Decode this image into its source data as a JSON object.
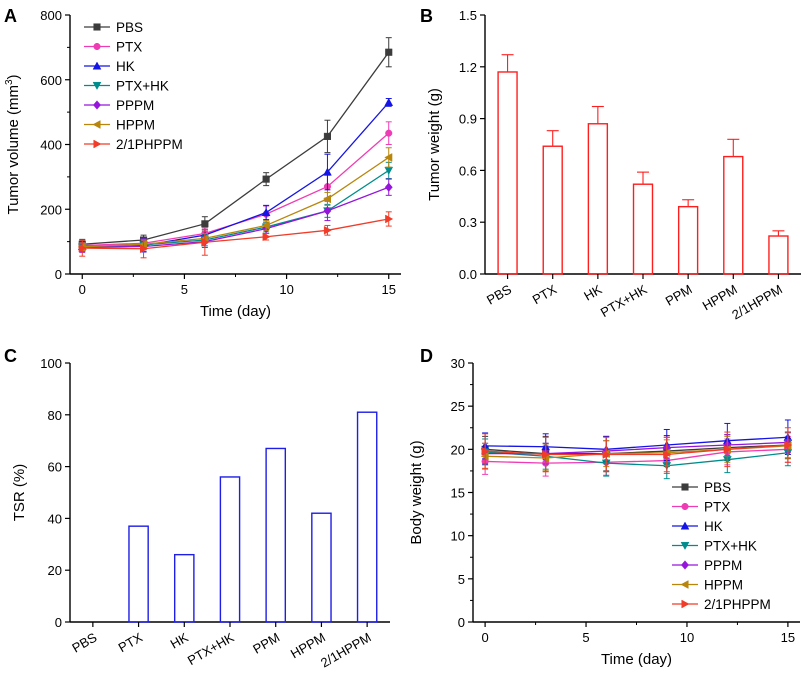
{
  "figure": {
    "panels": [
      "A",
      "B",
      "C",
      "D"
    ]
  },
  "chart_data": [
    {
      "panel": "A",
      "type": "line",
      "xlabel": "Time (day)",
      "ylabel_main": "Tumor volume (mm",
      "ylabel_sup": "3",
      "ylabel_close": ")",
      "xlim": [
        -0.6,
        15.6
      ],
      "ylim": [
        0,
        800
      ],
      "xticks": [
        0,
        5,
        10,
        15
      ],
      "yticks": [
        0,
        200,
        400,
        600,
        800
      ],
      "x": [
        0,
        3,
        6,
        9,
        12,
        15
      ],
      "legend": "top-left",
      "series": [
        {
          "name": "PBS",
          "color": "#3c3c3c",
          "marker": "square",
          "values": [
            92,
            105,
            155,
            293,
            425,
            685
          ],
          "errors": [
            15,
            15,
            22,
            20,
            50,
            45
          ]
        },
        {
          "name": "PTX",
          "color": "#f03cb4",
          "marker": "circle",
          "values": [
            88,
            95,
            125,
            185,
            270,
            435
          ],
          "errors": [
            12,
            14,
            18,
            25,
            35,
            35
          ]
        },
        {
          "name": "HK",
          "color": "#1414e6",
          "marker": "triangle-up",
          "values": [
            85,
            88,
            120,
            190,
            315,
            530
          ],
          "errors": [
            15,
            20,
            18,
            22,
            55,
            12
          ]
        },
        {
          "name": "PTX+HK",
          "color": "#008c8c",
          "marker": "triangle-down",
          "values": [
            83,
            90,
            105,
            145,
            195,
            320
          ],
          "errors": [
            12,
            15,
            18,
            15,
            20,
            25
          ]
        },
        {
          "name": "PPPM",
          "color": "#9614dc",
          "marker": "diamond",
          "values": [
            82,
            85,
            100,
            140,
            195,
            268
          ],
          "errors": [
            15,
            15,
            18,
            15,
            30,
            25
          ]
        },
        {
          "name": "HPPM",
          "color": "#b8860b",
          "marker": "triangle-left",
          "values": [
            84,
            92,
            110,
            150,
            232,
            360
          ],
          "errors": [
            12,
            14,
            15,
            15,
            20,
            30
          ]
        },
        {
          "name": "2/1PHPPM",
          "color": "#f03c28",
          "marker": "triangle-right",
          "values": [
            80,
            78,
            98,
            115,
            135,
            170
          ],
          "errors": [
            25,
            28,
            40,
            10,
            15,
            22
          ]
        }
      ]
    },
    {
      "panel": "B",
      "type": "bar",
      "xlabel": "",
      "ylabel": "Tumor weight (g)",
      "ylim": [
        0,
        1.5
      ],
      "yticks": [
        "0.0",
        "0.3",
        "0.6",
        "0.9",
        "1.2",
        "1.5"
      ],
      "color": "#ff1e1e",
      "categories": [
        "PBS",
        "PTX",
        "HK",
        "PTX+HK",
        "PPM",
        "HPPM",
        "2/1HPPM"
      ],
      "values": [
        1.17,
        0.74,
        0.87,
        0.52,
        0.39,
        0.68,
        0.22
      ],
      "errors": [
        0.1,
        0.09,
        0.1,
        0.07,
        0.04,
        0.1,
        0.03
      ]
    },
    {
      "panel": "C",
      "type": "bar",
      "xlabel": "",
      "ylabel": "TSR (%)",
      "ylim": [
        0,
        100
      ],
      "yticks": [
        0,
        20,
        40,
        60,
        80,
        100
      ],
      "color": "#1e1ee6",
      "categories": [
        "PBS",
        "PTX",
        "HK",
        "PTX+HK",
        "PPM",
        "HPPM",
        "2/1HPPM"
      ],
      "values": [
        0,
        37,
        26,
        56,
        67,
        42,
        81
      ]
    },
    {
      "panel": "D",
      "type": "line",
      "xlabel": "Time (day)",
      "ylabel": "Body weight (g)",
      "xlim": [
        -0.6,
        15.6
      ],
      "ylim": [
        0,
        30
      ],
      "xticks": [
        0,
        5,
        10,
        15
      ],
      "yticks": [
        0,
        5,
        10,
        15,
        20,
        25,
        30
      ],
      "x": [
        0,
        3,
        6,
        9,
        12,
        15
      ],
      "legend": "bottom-right",
      "series": [
        {
          "name": "PBS",
          "color": "#3c3c3c",
          "marker": "square",
          "values": [
            20.0,
            19.5,
            19.5,
            19.8,
            20.2,
            20.5
          ],
          "errors": [
            1.5,
            2.0,
            2.0,
            1.8,
            1.5,
            1.5
          ]
        },
        {
          "name": "PTX",
          "color": "#f03cb4",
          "marker": "circle",
          "values": [
            18.6,
            18.4,
            18.5,
            18.7,
            19.7,
            20.0
          ],
          "errors": [
            1.5,
            1.5,
            1.5,
            1.5,
            1.5,
            1.5
          ]
        },
        {
          "name": "HK",
          "color": "#1414e6",
          "marker": "triangle-up",
          "values": [
            20.4,
            20.3,
            20.0,
            20.5,
            21.0,
            21.4
          ],
          "errors": [
            1.5,
            1.5,
            1.5,
            1.8,
            2.0,
            2.0
          ]
        },
        {
          "name": "PTX+HK",
          "color": "#008c8c",
          "marker": "triangle-down",
          "values": [
            19.7,
            19.2,
            18.4,
            18.1,
            18.8,
            19.6
          ],
          "errors": [
            1.5,
            1.5,
            1.5,
            1.5,
            1.5,
            1.5
          ]
        },
        {
          "name": "PPPM",
          "color": "#9614dc",
          "marker": "diamond",
          "values": [
            19.5,
            19.5,
            19.8,
            20.2,
            20.5,
            20.8
          ],
          "errors": [
            1.2,
            1.2,
            1.2,
            1.2,
            1.2,
            1.2
          ]
        },
        {
          "name": "HPPM",
          "color": "#b8860b",
          "marker": "triangle-left",
          "values": [
            19.2,
            19.0,
            19.5,
            19.6,
            20.0,
            20.4
          ],
          "errors": [
            1.5,
            1.5,
            1.5,
            1.5,
            1.5,
            1.5
          ]
        },
        {
          "name": "2/1PHPPM",
          "color": "#f03c28",
          "marker": "triangle-right",
          "values": [
            19.8,
            19.4,
            19.4,
            19.4,
            20.0,
            20.5
          ],
          "errors": [
            2.0,
            2.0,
            2.0,
            2.0,
            2.0,
            2.0
          ]
        }
      ]
    }
  ]
}
